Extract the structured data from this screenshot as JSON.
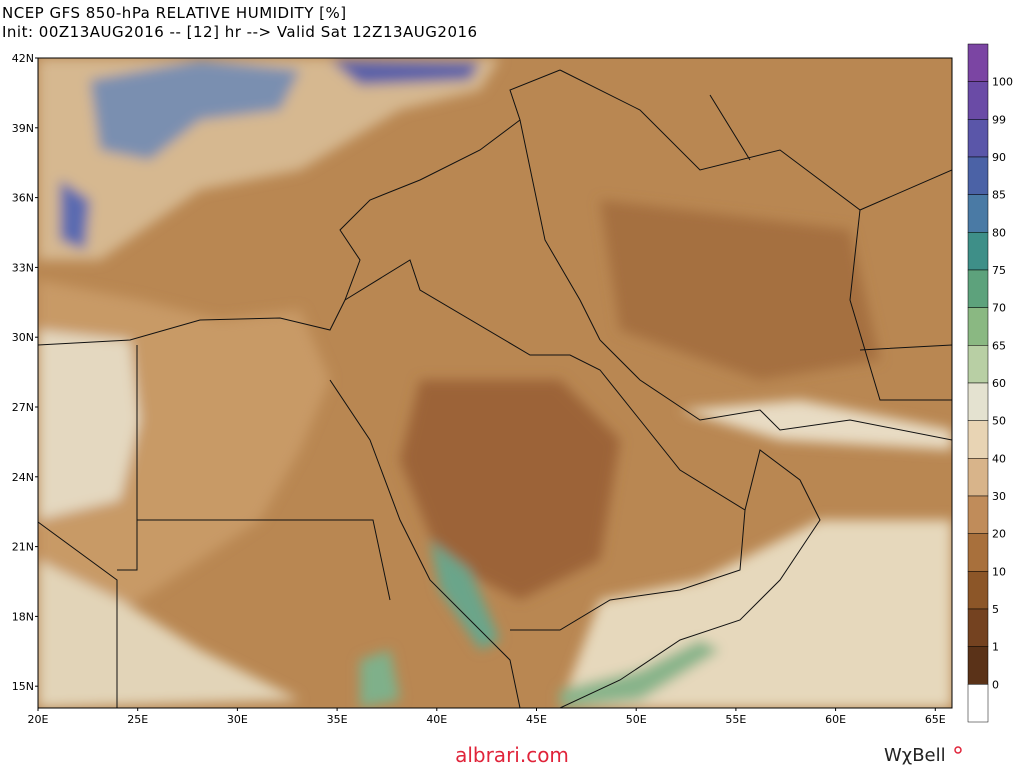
{
  "header": {
    "title": "NCEP GFS 850-hPa RELATIVE HUMIDITY [%]",
    "subtitle": "Init: 00Z13AUG2016 -- [12] hr --> Valid Sat 12Z13AUG2016"
  },
  "map": {
    "lat_labels": [
      "42N",
      "39N",
      "36N",
      "33N",
      "30N",
      "27N",
      "24N",
      "21N",
      "18N",
      "15N"
    ],
    "lon_labels": [
      "20E",
      "25E",
      "30E",
      "35E",
      "40E",
      "45E",
      "50E",
      "55E",
      "60E",
      "65E"
    ]
  },
  "colorbar": {
    "labels": [
      "100",
      "99",
      "90",
      "85",
      "80",
      "75",
      "70",
      "65",
      "60",
      "50",
      "40",
      "30",
      "20",
      "10",
      "5",
      "1",
      "0"
    ],
    "colors": [
      "#7b45a3",
      "#6a4ba6",
      "#5a56a9",
      "#4b62a6",
      "#4a7aa5",
      "#3e8f88",
      "#5da27c",
      "#8ab882",
      "#b8cfa4",
      "#e4e2d0",
      "#e8d4b4",
      "#d8b48a",
      "#c08c5a",
      "#a8703c",
      "#8c5628",
      "#744220",
      "#5a3218",
      "#ffffff"
    ]
  },
  "footer": {
    "site": "albrari.com",
    "brand": "WχBell"
  }
}
